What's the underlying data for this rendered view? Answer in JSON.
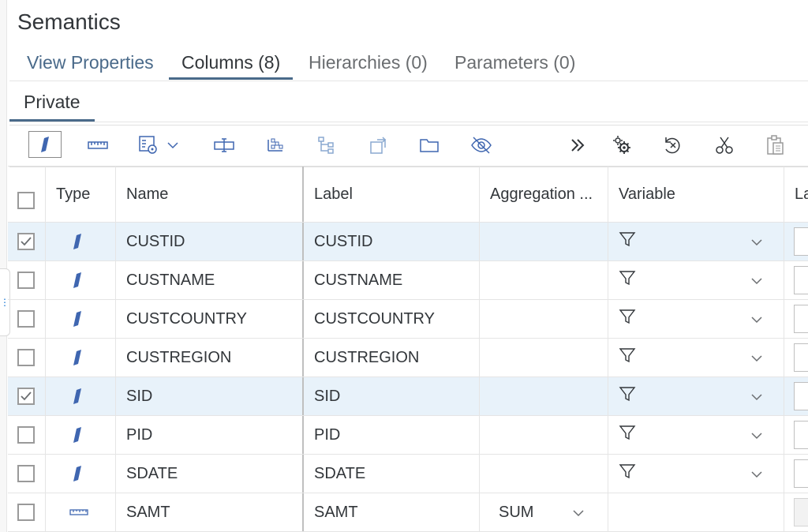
{
  "title": "Semantics",
  "tabs": [
    {
      "label": "View Properties"
    },
    {
      "label": "Columns (8)"
    },
    {
      "label": "Hierarchies (0)"
    },
    {
      "label": "Parameters (0)"
    }
  ],
  "subtab": "Private",
  "toolbar": {
    "buttons": [
      "dimension-icon",
      "measure-icon",
      "list-settings-icon",
      "chevron-down-icon",
      "rename-icon",
      "distribute-icon",
      "hierarchy-icon",
      "propagate-icon",
      "folder-icon",
      "hide-icon",
      "overflow-icon",
      "settings-gear-icon",
      "restore-icon",
      "cut-icon",
      "paste-icon"
    ]
  },
  "columns": {
    "type": "Type",
    "name": "Name",
    "label": "Label",
    "aggregation": "Aggregation ...",
    "variable": "Variable",
    "next": "La"
  },
  "rows": [
    {
      "checked": true,
      "type": "dimension",
      "name": "CUSTID",
      "label": "CUSTID",
      "aggregation": "",
      "has_variable": true
    },
    {
      "checked": false,
      "type": "dimension",
      "name": "CUSTNAME",
      "label": "CUSTNAME",
      "aggregation": "",
      "has_variable": true
    },
    {
      "checked": false,
      "type": "dimension",
      "name": "CUSTCOUNTRY",
      "label": "CUSTCOUNTRY",
      "aggregation": "",
      "has_variable": true
    },
    {
      "checked": false,
      "type": "dimension",
      "name": "CUSTREGION",
      "label": "CUSTREGION",
      "aggregation": "",
      "has_variable": true
    },
    {
      "checked": true,
      "type": "dimension",
      "name": "SID",
      "label": "SID",
      "aggregation": "",
      "has_variable": true
    },
    {
      "checked": false,
      "type": "dimension",
      "name": "PID",
      "label": "PID",
      "aggregation": "",
      "has_variable": true
    },
    {
      "checked": false,
      "type": "dimension",
      "name": "SDATE",
      "label": "SDATE",
      "aggregation": "",
      "has_variable": true
    },
    {
      "checked": false,
      "type": "measure",
      "name": "SAMT",
      "label": "SAMT",
      "aggregation": "SUM",
      "has_variable": false
    }
  ],
  "colors": {
    "accent": "#4a6a8a",
    "dimension_icon": "#3f66b0",
    "selected_row": "#e8f2fa"
  }
}
